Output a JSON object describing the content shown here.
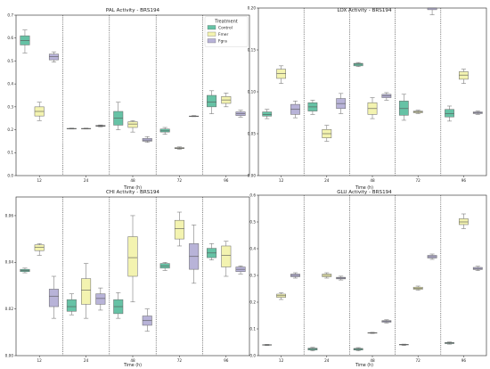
{
  "chart_data": [
    {
      "type": "box",
      "title": "PAL Activity - BRS194",
      "xlabel": "Time (h)",
      "ylabel": "",
      "categories": [
        "12",
        "24",
        "48",
        "72",
        "96"
      ],
      "ylim": [
        0,
        0.7
      ],
      "yticks": [
        "0.0",
        "0.1",
        "0.2",
        "0.3",
        "0.4",
        "0.5",
        "0.6",
        "0.7"
      ],
      "yticks_values": [
        0,
        0.1,
        0.2,
        0.3,
        0.4,
        0.5,
        0.6,
        0.7
      ],
      "legend": {
        "title": "Treatment",
        "position": "top-right",
        "entries": [
          "Control",
          "Fmer",
          "Fgra"
        ]
      },
      "series": [
        {
          "name": "Control",
          "color": "#66c2a5",
          "boxes": [
            {
              "min": 0.535,
              "q1": 0.57,
              "median": 0.59,
              "q3": 0.61,
              "max": 0.635
            },
            {
              "min": 0.203,
              "q1": 0.204,
              "median": 0.205,
              "q3": 0.206,
              "max": 0.207
            },
            {
              "min": 0.2,
              "q1": 0.22,
              "median": 0.25,
              "q3": 0.28,
              "max": 0.32
            },
            {
              "min": 0.18,
              "q1": 0.19,
              "median": 0.195,
              "q3": 0.203,
              "max": 0.21
            },
            {
              "min": 0.27,
              "q1": 0.3,
              "median": 0.32,
              "q3": 0.35,
              "max": 0.37
            }
          ]
        },
        {
          "name": "Fmer",
          "color": "#f3f3b0",
          "boxes": [
            {
              "min": 0.24,
              "q1": 0.26,
              "median": 0.28,
              "q3": 0.3,
              "max": 0.32
            },
            {
              "min": 0.203,
              "q1": 0.204,
              "median": 0.205,
              "q3": 0.206,
              "max": 0.207
            },
            {
              "min": 0.19,
              "q1": 0.21,
              "median": 0.225,
              "q3": 0.235,
              "max": 0.24
            },
            {
              "min": 0.115,
              "q1": 0.118,
              "median": 0.12,
              "q3": 0.122,
              "max": 0.125
            },
            {
              "min": 0.3,
              "q1": 0.315,
              "median": 0.33,
              "q3": 0.345,
              "max": 0.36
            }
          ]
        },
        {
          "name": "Fgra",
          "color": "#b8b3d8",
          "boxes": [
            {
              "min": 0.495,
              "q1": 0.505,
              "median": 0.52,
              "q3": 0.53,
              "max": 0.54
            },
            {
              "min": 0.213,
              "q1": 0.215,
              "median": 0.217,
              "q3": 0.219,
              "max": 0.221
            },
            {
              "min": 0.145,
              "q1": 0.15,
              "median": 0.155,
              "q3": 0.162,
              "max": 0.17
            },
            {
              "min": 0.257,
              "q1": 0.258,
              "median": 0.259,
              "q3": 0.26,
              "max": 0.262
            },
            {
              "min": 0.255,
              "q1": 0.262,
              "median": 0.27,
              "q3": 0.278,
              "max": 0.285
            }
          ]
        }
      ]
    },
    {
      "type": "box",
      "title": "LOX Activity - BRS194",
      "xlabel": "Time (h)",
      "ylabel": "",
      "categories": [
        "12",
        "24",
        "48",
        "72",
        "96"
      ],
      "ylim": [
        0,
        0.2
      ],
      "yticks": [
        "0.00",
        "0.05",
        "0.10",
        "0.15",
        "0.20"
      ],
      "yticks_values": [
        0,
        0.05,
        0.1,
        0.15,
        0.2
      ],
      "series": [
        {
          "name": "Control",
          "color": "#66c2a5",
          "boxes": [
            {
              "min": 0.068,
              "q1": 0.071,
              "median": 0.073,
              "q3": 0.076,
              "max": 0.079
            },
            {
              "min": 0.073,
              "q1": 0.077,
              "median": 0.082,
              "q3": 0.087,
              "max": 0.09
            },
            {
              "min": 0.13,
              "q1": 0.131,
              "median": 0.133,
              "q3": 0.134,
              "max": 0.135
            },
            {
              "min": 0.066,
              "q1": 0.072,
              "median": 0.08,
              "q3": 0.089,
              "max": 0.097
            },
            {
              "min": 0.065,
              "q1": 0.07,
              "median": 0.074,
              "q3": 0.079,
              "max": 0.083
            }
          ]
        },
        {
          "name": "Fmer",
          "color": "#f3f3b0",
          "boxes": [
            {
              "min": 0.11,
              "q1": 0.116,
              "median": 0.122,
              "q3": 0.127,
              "max": 0.131
            },
            {
              "min": 0.041,
              "q1": 0.045,
              "median": 0.05,
              "q3": 0.055,
              "max": 0.06
            },
            {
              "min": 0.068,
              "q1": 0.073,
              "median": 0.08,
              "q3": 0.087,
              "max": 0.093
            },
            {
              "min": 0.074,
              "q1": 0.075,
              "median": 0.076,
              "q3": 0.077,
              "max": 0.078
            },
            {
              "min": 0.11,
              "q1": 0.115,
              "median": 0.12,
              "q3": 0.124,
              "max": 0.127
            }
          ]
        },
        {
          "name": "Fgra",
          "color": "#b8b3d8",
          "boxes": [
            {
              "min": 0.069,
              "q1": 0.073,
              "median": 0.079,
              "q3": 0.085,
              "max": 0.089
            },
            {
              "min": 0.074,
              "q1": 0.08,
              "median": 0.086,
              "q3": 0.092,
              "max": 0.098
            },
            {
              "min": 0.09,
              "q1": 0.093,
              "median": 0.095,
              "q3": 0.097,
              "max": 0.099
            },
            {
              "min": 0.192,
              "q1": 0.198,
              "median": 0.2,
              "q3": 0.2,
              "max": 0.2
            },
            {
              "min": 0.073,
              "q1": 0.074,
              "median": 0.075,
              "q3": 0.076,
              "max": 0.077
            }
          ]
        }
      ]
    },
    {
      "type": "box",
      "title": "CHI Activity - BRS194",
      "xlabel": "Time (h)",
      "ylabel": "",
      "categories": [
        "12",
        "24",
        "48",
        "72",
        "96"
      ],
      "ylim": [
        0,
        0.068
      ],
      "yticks": [
        "0.00",
        "0.02",
        "0.04",
        "0.06"
      ],
      "yticks_values": [
        0,
        0.02,
        0.04,
        0.06
      ],
      "series": [
        {
          "name": "Control",
          "color": "#66c2a5",
          "boxes": [
            {
              "min": 0.0355,
              "q1": 0.036,
              "median": 0.0365,
              "q3": 0.037,
              "max": 0.0375
            },
            {
              "min": 0.0175,
              "q1": 0.019,
              "median": 0.021,
              "q3": 0.024,
              "max": 0.0265
            },
            {
              "min": 0.016,
              "q1": 0.018,
              "median": 0.021,
              "q3": 0.024,
              "max": 0.027
            },
            {
              "min": 0.0365,
              "q1": 0.0375,
              "median": 0.0385,
              "q3": 0.0395,
              "max": 0.04
            },
            {
              "min": 0.041,
              "q1": 0.042,
              "median": 0.044,
              "q3": 0.046,
              "max": 0.048
            }
          ]
        },
        {
          "name": "Fmer",
          "color": "#f3f3b0",
          "boxes": [
            {
              "min": 0.043,
              "q1": 0.045,
              "median": 0.0465,
              "q3": 0.0475,
              "max": 0.048
            },
            {
              "min": 0.016,
              "q1": 0.022,
              "median": 0.028,
              "q3": 0.033,
              "max": 0.0395
            },
            {
              "min": 0.023,
              "q1": 0.034,
              "median": 0.042,
              "q3": 0.051,
              "max": 0.06
            },
            {
              "min": 0.047,
              "q1": 0.05,
              "median": 0.0545,
              "q3": 0.058,
              "max": 0.0615
            },
            {
              "min": 0.034,
              "q1": 0.038,
              "median": 0.043,
              "q3": 0.047,
              "max": 0.049
            }
          ]
        },
        {
          "name": "Fgra",
          "color": "#b8b3d8",
          "boxes": [
            {
              "min": 0.016,
              "q1": 0.021,
              "median": 0.0255,
              "q3": 0.0285,
              "max": 0.034
            },
            {
              "min": 0.0195,
              "q1": 0.022,
              "median": 0.0245,
              "q3": 0.0265,
              "max": 0.029
            },
            {
              "min": 0.0105,
              "q1": 0.013,
              "median": 0.015,
              "q3": 0.017,
              "max": 0.02
            },
            {
              "min": 0.031,
              "q1": 0.037,
              "median": 0.0425,
              "q3": 0.048,
              "max": 0.056
            },
            {
              "min": 0.035,
              "q1": 0.036,
              "median": 0.037,
              "q3": 0.038,
              "max": 0.0385
            }
          ]
        }
      ]
    },
    {
      "type": "box",
      "title": "GLU Activity - BRS194",
      "xlabel": "Time (h)",
      "ylabel": "",
      "categories": [
        "12",
        "24",
        "48",
        "72",
        "96"
      ],
      "ylim": [
        0,
        0.6
      ],
      "yticks": [
        "0.0",
        "0.1",
        "0.2",
        "0.3",
        "0.4",
        "0.5",
        "0.6"
      ],
      "yticks_values": [
        0,
        0.1,
        0.2,
        0.3,
        0.4,
        0.5,
        0.6
      ],
      "series": [
        {
          "name": "Control",
          "color": "#66c2a5",
          "boxes": [
            {
              "min": 0.038,
              "q1": 0.039,
              "median": 0.04,
              "q3": 0.041,
              "max": 0.042
            },
            {
              "min": 0.018,
              "q1": 0.021,
              "median": 0.025,
              "q3": 0.028,
              "max": 0.031
            },
            {
              "min": 0.018,
              "q1": 0.021,
              "median": 0.024,
              "q3": 0.027,
              "max": 0.03
            },
            {
              "min": 0.038,
              "q1": 0.04,
              "median": 0.041,
              "q3": 0.042,
              "max": 0.043
            },
            {
              "min": 0.043,
              "q1": 0.045,
              "median": 0.047,
              "q3": 0.049,
              "max": 0.051
            }
          ]
        },
        {
          "name": "Fmer",
          "color": "#f3f3b0",
          "boxes": [
            {
              "min": 0.21,
              "q1": 0.218,
              "median": 0.224,
              "q3": 0.23,
              "max": 0.235
            },
            {
              "min": 0.29,
              "q1": 0.295,
              "median": 0.3,
              "q3": 0.305,
              "max": 0.31
            },
            {
              "min": 0.083,
              "q1": 0.084,
              "median": 0.085,
              "q3": 0.086,
              "max": 0.087
            },
            {
              "min": 0.245,
              "q1": 0.248,
              "median": 0.252,
              "q3": 0.256,
              "max": 0.26
            },
            {
              "min": 0.475,
              "q1": 0.49,
              "median": 0.5,
              "q3": 0.512,
              "max": 0.53
            }
          ]
        },
        {
          "name": "Fgra",
          "color": "#b8b3d8",
          "boxes": [
            {
              "min": 0.29,
              "q1": 0.295,
              "median": 0.3,
              "q3": 0.305,
              "max": 0.31
            },
            {
              "min": 0.283,
              "q1": 0.287,
              "median": 0.29,
              "q3": 0.293,
              "max": 0.297
            },
            {
              "min": 0.122,
              "q1": 0.125,
              "median": 0.128,
              "q3": 0.131,
              "max": 0.134
            },
            {
              "min": 0.36,
              "q1": 0.365,
              "median": 0.37,
              "q3": 0.375,
              "max": 0.38
            },
            {
              "min": 0.318,
              "q1": 0.322,
              "median": 0.326,
              "q3": 0.33,
              "max": 0.334
            }
          ]
        }
      ]
    }
  ]
}
